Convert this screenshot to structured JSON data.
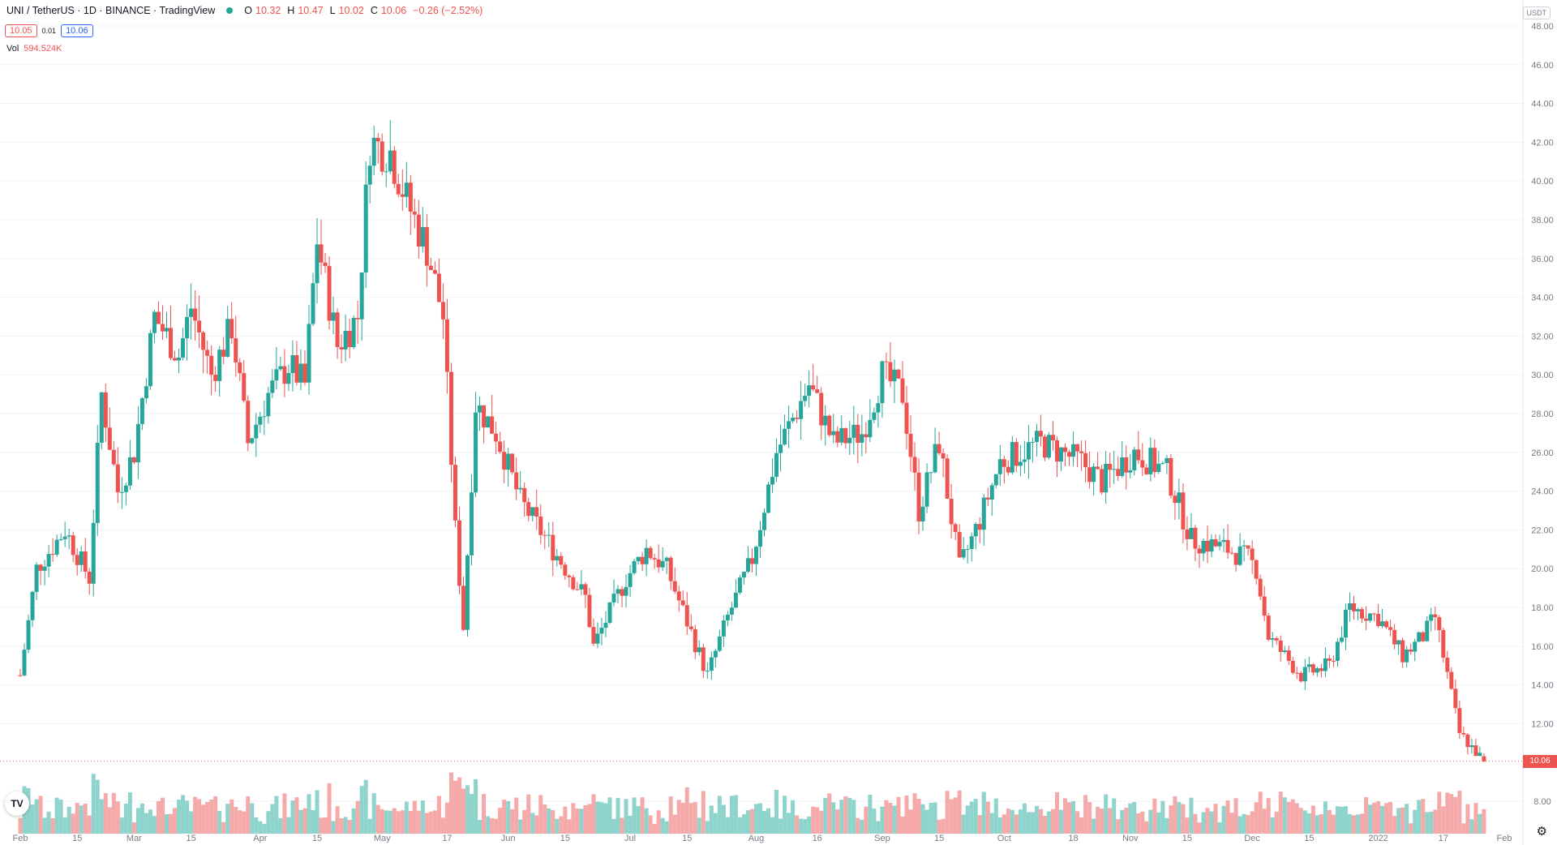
{
  "legend": {
    "symbol": "UNI / TetherUS · 1D · BINANCE · TradingView",
    "open_label": "O",
    "open": "10.32",
    "high_label": "H",
    "high": "10.47",
    "low_label": "L",
    "low": "10.02",
    "close_label": "C",
    "close": "10.06",
    "change": "−0.26 (−2.52%)"
  },
  "trade": {
    "sell": "10.05",
    "spread": "0.01",
    "buy": "10.06"
  },
  "volume": {
    "label": "Vol",
    "value": "594.524K"
  },
  "currency": "USDT",
  "last_price_tag": "10.06",
  "colors": {
    "up": "#26a69a",
    "down": "#ef5350",
    "vol_up": "#8fd4cc",
    "vol_down": "#f5a9a9",
    "grid": "#f0f3fa",
    "text": "#787b86"
  },
  "chart_data": {
    "type": "candlestick",
    "interval": "1D",
    "y_ticks": [
      8,
      12,
      14,
      16,
      18,
      20,
      22,
      24,
      26,
      28,
      30,
      32,
      34,
      36,
      38,
      40,
      42,
      44,
      46,
      48
    ],
    "y_tick_labels": [
      "8.00",
      "12.00",
      "14.00",
      "16.00",
      "18.00",
      "20.00",
      "22.00",
      "24.00",
      "26.00",
      "28.00",
      "30.00",
      "32.00",
      "34.00",
      "36.00",
      "38.00",
      "40.00",
      "42.00",
      "44.00",
      "46.00",
      "48.00"
    ],
    "ylim": [
      7.5,
      48.5
    ],
    "x_labels": [
      "Feb",
      "15",
      "Mar",
      "15",
      "Apr",
      "15",
      "May",
      "17",
      "Jun",
      "15",
      "Jul",
      "15",
      "Aug",
      "16",
      "Sep",
      "15",
      "Oct",
      "18",
      "Nov",
      "15",
      "Dec",
      "15",
      "2022",
      "17",
      "Feb"
    ],
    "close_path_anchors": [
      [
        "2021-02-01",
        14.5
      ],
      [
        "2021-02-05",
        20.0
      ],
      [
        "2021-02-12",
        22.0
      ],
      [
        "2021-02-18",
        19.5
      ],
      [
        "2021-02-21",
        29.0
      ],
      [
        "2021-02-25",
        24.0
      ],
      [
        "2021-03-01",
        26.0
      ],
      [
        "2021-03-06",
        33.0
      ],
      [
        "2021-03-12",
        31.0
      ],
      [
        "2021-03-15",
        33.5
      ],
      [
        "2021-03-20",
        30.0
      ],
      [
        "2021-03-25",
        32.5
      ],
      [
        "2021-03-29",
        26.5
      ],
      [
        "2021-04-03",
        29.0
      ],
      [
        "2021-04-08",
        30.5
      ],
      [
        "2021-04-12",
        29.5
      ],
      [
        "2021-04-15",
        37.0
      ],
      [
        "2021-04-20",
        31.5
      ],
      [
        "2021-04-25",
        33.0
      ],
      [
        "2021-04-28",
        42.0
      ],
      [
        "2021-05-03",
        41.5
      ],
      [
        "2021-05-07",
        39.0
      ],
      [
        "2021-05-12",
        36.5
      ],
      [
        "2021-05-16",
        33.0
      ],
      [
        "2021-05-19",
        22.0
      ],
      [
        "2021-05-21",
        17.0
      ],
      [
        "2021-05-24",
        28.5
      ],
      [
        "2021-05-29",
        27.0
      ],
      [
        "2021-06-04",
        23.5
      ],
      [
        "2021-06-12",
        21.0
      ],
      [
        "2021-06-20",
        18.5
      ],
      [
        "2021-06-22",
        16.0
      ],
      [
        "2021-06-30",
        19.5
      ],
      [
        "2021-07-05",
        21.0
      ],
      [
        "2021-07-10",
        20.0
      ],
      [
        "2021-07-20",
        14.5
      ],
      [
        "2021-07-25",
        17.5
      ],
      [
        "2021-07-31",
        20.5
      ],
      [
        "2021-08-06",
        26.0
      ],
      [
        "2021-08-14",
        29.5
      ],
      [
        "2021-08-20",
        26.5
      ],
      [
        "2021-08-27",
        27.0
      ],
      [
        "2021-09-01",
        30.0
      ],
      [
        "2021-09-06",
        29.0
      ],
      [
        "2021-09-10",
        23.0
      ],
      [
        "2021-09-15",
        26.5
      ],
      [
        "2021-09-20",
        20.0
      ],
      [
        "2021-09-25",
        22.5
      ],
      [
        "2021-09-30",
        25.5
      ],
      [
        "2021-10-10",
        26.5
      ],
      [
        "2021-10-20",
        25.5
      ],
      [
        "2021-10-25",
        24.5
      ],
      [
        "2021-11-02",
        26.0
      ],
      [
        "2021-11-10",
        25.0
      ],
      [
        "2021-11-16",
        21.5
      ],
      [
        "2021-11-25",
        21.0
      ],
      [
        "2021-11-30",
        20.5
      ],
      [
        "2021-12-02",
        20.0
      ],
      [
        "2021-12-05",
        16.5
      ],
      [
        "2021-12-13",
        14.5
      ],
      [
        "2021-12-20",
        15.0
      ],
      [
        "2021-12-25",
        18.0
      ],
      [
        "2022-01-01",
        17.5
      ],
      [
        "2022-01-07",
        15.5
      ],
      [
        "2022-01-12",
        16.5
      ],
      [
        "2022-01-15",
        17.5
      ],
      [
        "2022-01-21",
        11.5
      ],
      [
        "2022-01-27",
        10.06
      ]
    ]
  }
}
